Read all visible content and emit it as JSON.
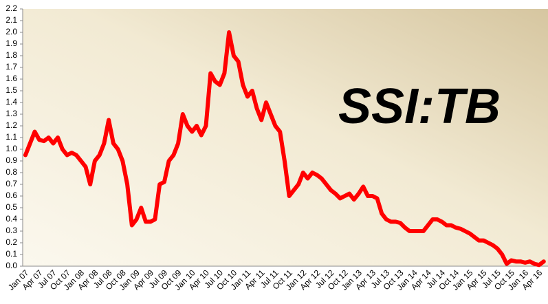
{
  "chart_data": {
    "type": "line",
    "annotation": "SSI:TB",
    "categories": [
      "Jan 07",
      null,
      null,
      "Apr 07",
      null,
      null,
      "Jul 07",
      null,
      null,
      "Oct 07",
      null,
      null,
      "Jan 08",
      null,
      null,
      "Apr 08",
      null,
      null,
      "Jul 08",
      null,
      null,
      "Oct 08",
      null,
      null,
      "Jan 09",
      null,
      null,
      "Apr 09",
      null,
      null,
      "Jul 09",
      null,
      null,
      "Oct 09",
      null,
      null,
      "Jan 10",
      null,
      null,
      "Apr 10",
      null,
      null,
      "Jul 10",
      null,
      null,
      "Oct 10",
      null,
      null,
      "Jan 11",
      null,
      null,
      "Apr 11",
      null,
      null,
      "Jul 11",
      null,
      null,
      "Oct 11",
      null,
      null,
      "Jan 12",
      null,
      null,
      "Apr 12",
      null,
      null,
      "Jul 12",
      null,
      null,
      "Oct 12",
      null,
      null,
      "Jan 13",
      null,
      null,
      "Apr 13",
      null,
      null,
      "Jul 13",
      null,
      null,
      "Oct 13",
      null,
      null,
      "Jan 14",
      null,
      null,
      "Apr 14",
      null,
      null,
      "Jul 14",
      null,
      null,
      "Oct 14",
      null,
      null,
      "Jan 15",
      null,
      null,
      "Apr 15",
      null,
      null,
      "Jul 15",
      null,
      null,
      "Oct 15",
      null,
      null,
      "Jan 16",
      null,
      null,
      "Apr 16",
      null
    ],
    "series": [
      {
        "color": "#ff0000",
        "values": [
          0.95,
          1.05,
          1.15,
          1.08,
          1.07,
          1.1,
          1.05,
          1.1,
          1.0,
          0.95,
          0.97,
          0.95,
          0.9,
          0.85,
          0.7,
          0.9,
          0.95,
          1.05,
          1.25,
          1.05,
          1.0,
          0.9,
          0.7,
          0.35,
          0.4,
          0.5,
          0.38,
          0.38,
          0.4,
          0.7,
          0.72,
          0.9,
          0.95,
          1.05,
          1.3,
          1.2,
          1.15,
          1.2,
          1.12,
          1.2,
          1.65,
          1.58,
          1.55,
          1.65,
          2.0,
          1.8,
          1.75,
          1.55,
          1.45,
          1.5,
          1.35,
          1.25,
          1.4,
          1.3,
          1.2,
          1.15,
          0.9,
          0.6,
          0.65,
          0.7,
          0.8,
          0.75,
          0.8,
          0.78,
          0.75,
          0.7,
          0.65,
          0.62,
          0.58,
          0.6,
          0.62,
          0.57,
          0.62,
          0.68,
          0.6,
          0.6,
          0.58,
          0.45,
          0.4,
          0.38,
          0.38,
          0.37,
          0.33,
          0.3,
          0.3,
          0.3,
          0.3,
          0.35,
          0.4,
          0.4,
          0.38,
          0.35,
          0.35,
          0.33,
          0.32,
          0.3,
          0.28,
          0.25,
          0.22,
          0.22,
          0.2,
          0.18,
          0.15,
          0.1,
          0.02,
          0.05,
          0.04,
          0.04,
          0.03,
          0.04,
          0.02,
          0.01,
          0.04
        ]
      }
    ],
    "ylim": [
      0,
      2.2
    ],
    "yticks": [
      {
        "value": 0,
        "label": "0.0"
      },
      {
        "value": 0.1,
        "label": "0.1"
      },
      {
        "value": 0.2,
        "label": "0.2"
      },
      {
        "value": 0.3,
        "label": "0.3"
      },
      {
        "value": 0.4,
        "label": "0.4"
      },
      {
        "value": 0.5,
        "label": "0.5"
      },
      {
        "value": 0.6,
        "label": "0.6"
      },
      {
        "value": 0.7,
        "label": "0.7"
      },
      {
        "value": 0.8,
        "label": "0.8"
      },
      {
        "value": 0.9,
        "label": "0.9"
      },
      {
        "value": 1,
        "label": "1.0"
      },
      {
        "value": 1.1,
        "label": "1.1"
      },
      {
        "value": 1.2,
        "label": "1.2"
      },
      {
        "value": 1.3,
        "label": "1.3"
      },
      {
        "value": 1.4,
        "label": "1.4"
      },
      {
        "value": 1.5,
        "label": "1.5"
      },
      {
        "value": 1.6,
        "label": "1.6"
      },
      {
        "value": 1.7,
        "label": "1.7"
      },
      {
        "value": 1.8,
        "label": "1.8"
      },
      {
        "value": 1.9,
        "label": "1.9"
      },
      {
        "value": 2,
        "label": "2.0"
      },
      {
        "value": 2.1,
        "label": "2.1"
      },
      {
        "value": 2.2,
        "label": "2.2"
      }
    ]
  }
}
